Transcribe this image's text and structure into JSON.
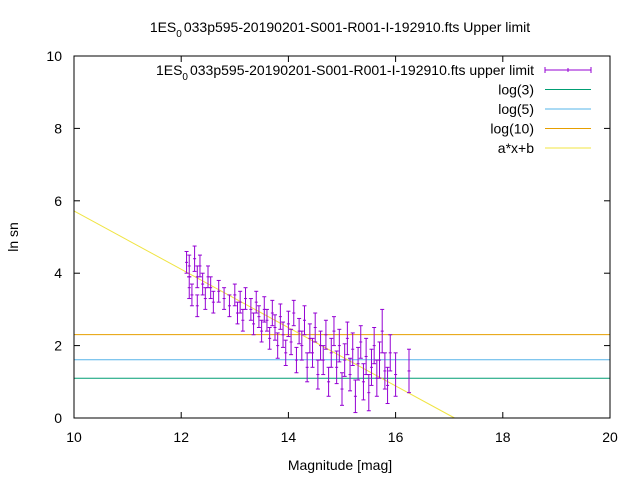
{
  "chart_data": {
    "type": "scatter",
    "title": {
      "pre": "1ES",
      "sub": "0",
      "post": "033p595-20190201-S001-R001-I-192910.fts Upper limit"
    },
    "xlabel": "Magnitude [mag]",
    "ylabel": "ln sn",
    "xlim": [
      10,
      20
    ],
    "ylim": [
      0,
      10
    ],
    "xticks": [
      10,
      12,
      14,
      16,
      18,
      20
    ],
    "yticks": [
      0,
      2,
      4,
      6,
      8,
      10
    ],
    "grid": false,
    "legend_position": "top-right",
    "series": [
      {
        "name": {
          "pre": "1ES",
          "sub": "0",
          "post": "033p595-20190201-S001-R001-I-192910.fts upper limit"
        },
        "kind": "errorbars",
        "color": "#9400d3",
        "points": [
          [
            12.1,
            4.3,
            0.3
          ],
          [
            12.15,
            3.6,
            0.3
          ],
          [
            12.15,
            4.2,
            0.3
          ],
          [
            12.2,
            3.4,
            0.3
          ],
          [
            12.25,
            4.4,
            0.35
          ],
          [
            12.3,
            3.9,
            0.3
          ],
          [
            12.3,
            3.1,
            0.3
          ],
          [
            12.35,
            4.2,
            0.3
          ],
          [
            12.4,
            3.7,
            0.3
          ],
          [
            12.45,
            3.3,
            0.3
          ],
          [
            12.5,
            3.9,
            0.3
          ],
          [
            12.55,
            3.6,
            0.3
          ],
          [
            12.6,
            3.2,
            0.3
          ],
          [
            12.7,
            3.5,
            0.3
          ],
          [
            12.8,
            3.3,
            0.3
          ],
          [
            12.9,
            3.1,
            0.3
          ],
          [
            13.0,
            3.4,
            0.3
          ],
          [
            13.05,
            2.9,
            0.3
          ],
          [
            13.1,
            3.2,
            0.3
          ],
          [
            13.15,
            2.7,
            0.3
          ],
          [
            13.2,
            3.3,
            0.3
          ],
          [
            13.3,
            3.0,
            0.3
          ],
          [
            13.35,
            2.6,
            0.3
          ],
          [
            13.4,
            3.2,
            0.3
          ],
          [
            13.45,
            2.8,
            0.3
          ],
          [
            13.5,
            2.4,
            0.3
          ],
          [
            13.55,
            3.0,
            0.35
          ],
          [
            13.6,
            2.7,
            0.3
          ],
          [
            13.65,
            2.2,
            0.3
          ],
          [
            13.7,
            2.9,
            0.35
          ],
          [
            13.75,
            2.5,
            0.35
          ],
          [
            13.8,
            2.0,
            0.35
          ],
          [
            13.85,
            2.8,
            0.35
          ],
          [
            13.9,
            2.3,
            0.35
          ],
          [
            13.95,
            1.8,
            0.35
          ],
          [
            14.0,
            2.6,
            0.35
          ],
          [
            14.05,
            2.1,
            0.35
          ],
          [
            14.1,
            2.9,
            0.35
          ],
          [
            14.15,
            1.6,
            0.35
          ],
          [
            14.2,
            2.4,
            0.35
          ],
          [
            14.25,
            2.0,
            0.4
          ],
          [
            14.3,
            2.7,
            0.4
          ],
          [
            14.35,
            1.4,
            0.4
          ],
          [
            14.4,
            2.2,
            0.4
          ],
          [
            14.45,
            1.8,
            0.4
          ],
          [
            14.5,
            2.5,
            0.4
          ],
          [
            14.55,
            1.2,
            0.4
          ],
          [
            14.6,
            2.0,
            0.4
          ],
          [
            14.65,
            1.6,
            0.4
          ],
          [
            14.7,
            2.3,
            0.4
          ],
          [
            14.75,
            1.0,
            0.4
          ],
          [
            14.8,
            1.8,
            0.4
          ],
          [
            14.85,
            2.4,
            0.4
          ],
          [
            14.9,
            1.4,
            0.45
          ],
          [
            14.95,
            2.0,
            0.45
          ],
          [
            15.0,
            0.8,
            0.45
          ],
          [
            15.05,
            1.6,
            0.45
          ],
          [
            15.1,
            2.2,
            0.45
          ],
          [
            15.15,
            1.2,
            0.45
          ],
          [
            15.2,
            1.9,
            0.45
          ],
          [
            15.25,
            0.6,
            0.45
          ],
          [
            15.3,
            1.5,
            0.45
          ],
          [
            15.35,
            2.1,
            0.45
          ],
          [
            15.4,
            1.0,
            0.5
          ],
          [
            15.45,
            1.7,
            0.5
          ],
          [
            15.5,
            0.7,
            0.5
          ],
          [
            15.55,
            1.4,
            0.5
          ],
          [
            15.6,
            2.0,
            0.5
          ],
          [
            15.65,
            1.1,
            0.5
          ],
          [
            15.7,
            1.6,
            0.5
          ],
          [
            15.75,
            2.4,
            0.6
          ],
          [
            15.8,
            1.3,
            0.5
          ],
          [
            15.85,
            0.9,
            0.5
          ],
          [
            15.9,
            1.8,
            0.5
          ],
          [
            16.0,
            1.2,
            0.6
          ],
          [
            16.25,
            1.3,
            0.6
          ]
        ]
      },
      {
        "name": "log(3)",
        "kind": "hline",
        "y": 1.0986,
        "color": "#009e73"
      },
      {
        "name": "log(5)",
        "kind": "hline",
        "y": 1.6094,
        "color": "#56b4e9"
      },
      {
        "name": "log(10)",
        "kind": "hline",
        "y": 2.3026,
        "color": "#e69f00"
      },
      {
        "name": "a*x+b",
        "kind": "fitline",
        "points": [
          [
            10,
            5.72
          ],
          [
            17.1,
            0
          ]
        ],
        "color": "#f0e442"
      }
    ]
  }
}
